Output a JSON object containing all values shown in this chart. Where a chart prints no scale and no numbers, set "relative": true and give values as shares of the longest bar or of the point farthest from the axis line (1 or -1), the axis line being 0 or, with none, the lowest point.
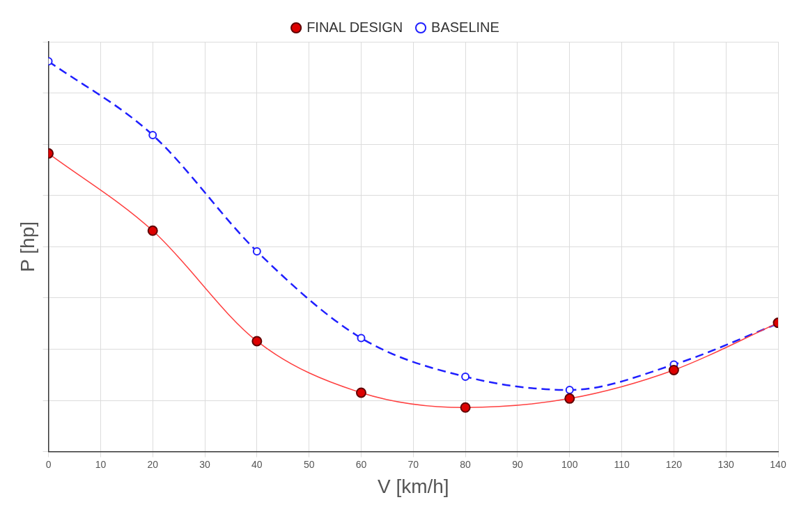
{
  "chart_data": {
    "type": "line",
    "relative": true,
    "xlabel": "V [km/h]",
    "ylabel": "P [hp]",
    "x": [
      0,
      20,
      40,
      60,
      80,
      100,
      120,
      140
    ],
    "xlim": [
      0,
      140
    ],
    "xticks": [
      0,
      10,
      20,
      30,
      40,
      50,
      60,
      70,
      80,
      90,
      100,
      110,
      120,
      130,
      140
    ],
    "series": [
      {
        "name": "BASELINE",
        "color": "#1f1fff",
        "line_style": "dashed",
        "values": [
          1,
          0.811,
          0.513,
          0.291,
          0.192,
          0.158,
          0.223,
          0.328
        ]
      },
      {
        "name": "FINAL DESIGN",
        "color": "#ff4040",
        "line_style": "solid",
        "values": [
          0.764,
          0.566,
          0.283,
          0.151,
          0.113,
          0.136,
          0.209,
          0.33
        ]
      }
    ],
    "grid": true,
    "legend": "top",
    "marker": "circle",
    "tick_labels": "x"
  }
}
